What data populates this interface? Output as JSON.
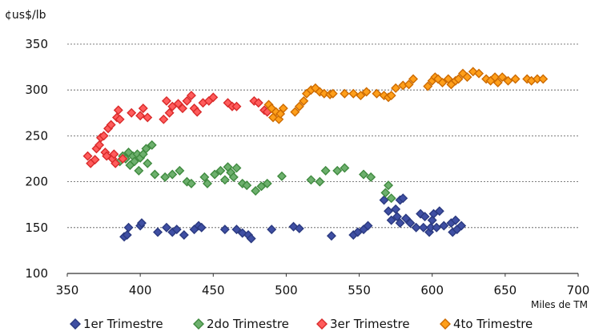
{
  "chart_data": {
    "type": "scatter",
    "ylabel": "¢us$/lb",
    "xlabel": "Miles de TM",
    "xlim": [
      350,
      700
    ],
    "ylim": [
      100,
      350
    ],
    "xticks": [
      350,
      400,
      450,
      500,
      550,
      600,
      650,
      700
    ],
    "yticks": [
      100,
      150,
      200,
      250,
      300,
      350
    ],
    "grid": "horizontal-dashed",
    "legend_position": "bottom",
    "series": [
      {
        "name": "1er Trimestre",
        "color": "#3f4fa3",
        "edge": "#2b3a80",
        "points": [
          [
            389,
            140
          ],
          [
            391,
            142
          ],
          [
            392,
            150
          ],
          [
            400,
            152
          ],
          [
            401,
            155
          ],
          [
            412,
            145
          ],
          [
            418,
            150
          ],
          [
            422,
            145
          ],
          [
            425,
            148
          ],
          [
            430,
            142
          ],
          [
            437,
            148
          ],
          [
            440,
            152
          ],
          [
            442,
            150
          ],
          [
            458,
            148
          ],
          [
            466,
            148
          ],
          [
            470,
            144
          ],
          [
            474,
            142
          ],
          [
            476,
            138
          ],
          [
            490,
            148
          ],
          [
            505,
            151
          ],
          [
            509,
            149
          ],
          [
            531,
            141
          ],
          [
            546,
            142
          ],
          [
            549,
            145
          ],
          [
            553,
            148
          ],
          [
            556,
            152
          ],
          [
            567,
            180
          ],
          [
            570,
            168
          ],
          [
            572,
            158
          ],
          [
            575,
            170
          ],
          [
            576,
            162
          ],
          [
            578,
            155
          ],
          [
            578,
            180
          ],
          [
            580,
            182
          ],
          [
            582,
            160
          ],
          [
            585,
            155
          ],
          [
            589,
            150
          ],
          [
            592,
            165
          ],
          [
            594,
            150
          ],
          [
            595,
            162
          ],
          [
            598,
            145
          ],
          [
            599,
            150
          ],
          [
            600,
            158
          ],
          [
            601,
            165
          ],
          [
            603,
            150
          ],
          [
            605,
            168
          ],
          [
            608,
            152
          ],
          [
            613,
            155
          ],
          [
            614,
            145
          ],
          [
            616,
            158
          ],
          [
            617,
            148
          ],
          [
            620,
            152
          ]
        ]
      },
      {
        "name": "2do Trimestre",
        "color": "#6db06d",
        "edge": "#3f8a3f",
        "points": [
          [
            386,
            222
          ],
          [
            388,
            228
          ],
          [
            390,
            225
          ],
          [
            392,
            232
          ],
          [
            393,
            218
          ],
          [
            395,
            228
          ],
          [
            396,
            222
          ],
          [
            398,
            230
          ],
          [
            399,
            212
          ],
          [
            400,
            226
          ],
          [
            402,
            230
          ],
          [
            404,
            236
          ],
          [
            405,
            220
          ],
          [
            408,
            240
          ],
          [
            410,
            208
          ],
          [
            417,
            205
          ],
          [
            422,
            208
          ],
          [
            427,
            212
          ],
          [
            432,
            200
          ],
          [
            435,
            198
          ],
          [
            444,
            205
          ],
          [
            446,
            198
          ],
          [
            451,
            208
          ],
          [
            455,
            212
          ],
          [
            458,
            202
          ],
          [
            460,
            216
          ],
          [
            462,
            210
          ],
          [
            464,
            205
          ],
          [
            466,
            215
          ],
          [
            470,
            198
          ],
          [
            473,
            196
          ],
          [
            479,
            190
          ],
          [
            483,
            195
          ],
          [
            487,
            198
          ],
          [
            497,
            206
          ],
          [
            517,
            202
          ],
          [
            523,
            200
          ],
          [
            527,
            212
          ],
          [
            535,
            212
          ],
          [
            540,
            215
          ],
          [
            553,
            208
          ],
          [
            558,
            205
          ],
          [
            568,
            188
          ],
          [
            570,
            196
          ],
          [
            572,
            182
          ]
        ]
      },
      {
        "name": "3er Trimestre",
        "color": "#ff5c5c",
        "edge": "#d92a2a",
        "points": [
          [
            364,
            228
          ],
          [
            366,
            220
          ],
          [
            369,
            224
          ],
          [
            370,
            236
          ],
          [
            372,
            240
          ],
          [
            373,
            248
          ],
          [
            375,
            250
          ],
          [
            376,
            232
          ],
          [
            377,
            228
          ],
          [
            378,
            258
          ],
          [
            380,
            262
          ],
          [
            381,
            225
          ],
          [
            382,
            230
          ],
          [
            383,
            220
          ],
          [
            384,
            270
          ],
          [
            385,
            278
          ],
          [
            386,
            268
          ],
          [
            388,
            225
          ],
          [
            394,
            275
          ],
          [
            400,
            272
          ],
          [
            402,
            280
          ],
          [
            405,
            270
          ],
          [
            416,
            268
          ],
          [
            418,
            288
          ],
          [
            420,
            275
          ],
          [
            422,
            282
          ],
          [
            426,
            285
          ],
          [
            429,
            280
          ],
          [
            432,
            288
          ],
          [
            435,
            294
          ],
          [
            437,
            280
          ],
          [
            439,
            276
          ],
          [
            443,
            286
          ],
          [
            447,
            288
          ],
          [
            450,
            292
          ],
          [
            460,
            286
          ],
          [
            463,
            282
          ],
          [
            466,
            282
          ],
          [
            478,
            288
          ],
          [
            481,
            286
          ],
          [
            485,
            278
          ],
          [
            487,
            276
          ]
        ]
      },
      {
        "name": "4to Trimestre",
        "color": "#ff9f1a",
        "edge": "#cc6a00",
        "points": [
          [
            488,
            284
          ],
          [
            490,
            280
          ],
          [
            491,
            270
          ],
          [
            493,
            276
          ],
          [
            495,
            268
          ],
          [
            496,
            274
          ],
          [
            498,
            280
          ],
          [
            506,
            276
          ],
          [
            509,
            282
          ],
          [
            512,
            288
          ],
          [
            514,
            296
          ],
          [
            517,
            300
          ],
          [
            520,
            302
          ],
          [
            523,
            298
          ],
          [
            526,
            296
          ],
          [
            530,
            295
          ],
          [
            532,
            296
          ],
          [
            540,
            296
          ],
          [
            546,
            296
          ],
          [
            551,
            294
          ],
          [
            555,
            298
          ],
          [
            562,
            296
          ],
          [
            567,
            294
          ],
          [
            570,
            292
          ],
          [
            572,
            294
          ],
          [
            575,
            302
          ],
          [
            580,
            305
          ],
          [
            584,
            306
          ],
          [
            587,
            312
          ],
          [
            597,
            304
          ],
          [
            600,
            310
          ],
          [
            602,
            314
          ],
          [
            604,
            312
          ],
          [
            607,
            308
          ],
          [
            611,
            312
          ],
          [
            613,
            306
          ],
          [
            616,
            310
          ],
          [
            618,
            312
          ],
          [
            621,
            318
          ],
          [
            624,
            314
          ],
          [
            628,
            320
          ],
          [
            632,
            318
          ],
          [
            637,
            312
          ],
          [
            640,
            310
          ],
          [
            643,
            314
          ],
          [
            645,
            308
          ],
          [
            648,
            314
          ],
          [
            652,
            310
          ],
          [
            657,
            312
          ],
          [
            665,
            312
          ],
          [
            668,
            310
          ],
          [
            672,
            312
          ],
          [
            676,
            312
          ]
        ]
      }
    ]
  }
}
